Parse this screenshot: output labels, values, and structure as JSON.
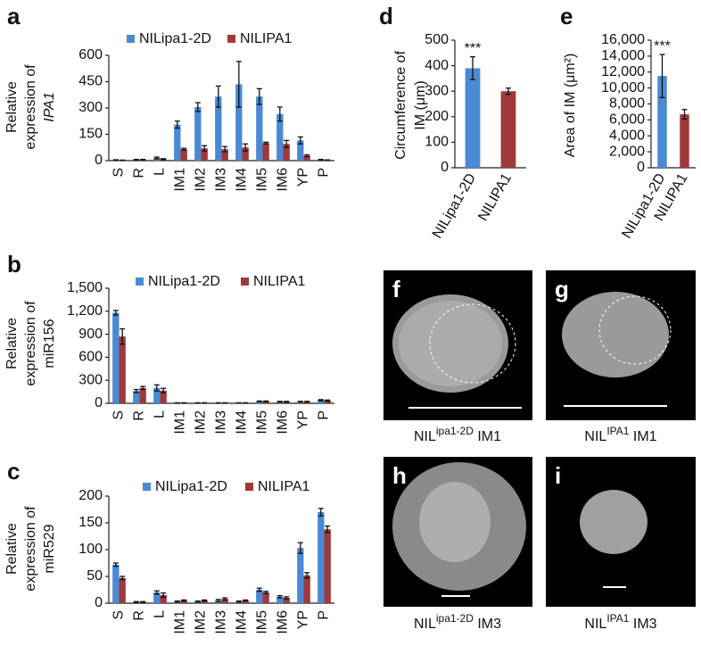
{
  "chart_data": [
    {
      "type": "bar",
      "panel": "a",
      "ylabel": [
        "Relative",
        "expression of",
        "IPA1"
      ],
      "categories": [
        "S",
        "R",
        "L",
        "IM1",
        "IM2",
        "IM3",
        "IM4",
        "IM5",
        "IM6",
        "YP",
        "P"
      ],
      "series": [
        {
          "name": "NILipa1-2D",
          "color": "#4a8ad4",
          "values": [
            3,
            5,
            15,
            205,
            305,
            365,
            435,
            365,
            265,
            115,
            5
          ],
          "errors": [
            2,
            2,
            5,
            20,
            25,
            60,
            130,
            45,
            40,
            20,
            2
          ]
        },
        {
          "name": "NILIPA1",
          "color": "#a03a3a",
          "values": [
            2,
            5,
            8,
            65,
            70,
            65,
            75,
            100,
            95,
            28,
            3
          ],
          "errors": [
            1,
            2,
            3,
            5,
            15,
            15,
            20,
            5,
            20,
            5,
            1
          ]
        }
      ],
      "ylim": [
        0,
        600
      ],
      "yticks": [
        0,
        150,
        300,
        450,
        600
      ]
    },
    {
      "type": "bar",
      "panel": "b",
      "ylabel": [
        "Relative",
        "expression of",
        "miR156"
      ],
      "categories": [
        "S",
        "R",
        "L",
        "IM1",
        "IM2",
        "IM3",
        "IM4",
        "IM5",
        "IM6",
        "YP",
        "P"
      ],
      "series": [
        {
          "name": "NILipa1-2D",
          "color": "#4a8ad4",
          "values": [
            1180,
            160,
            200,
            5,
            5,
            5,
            5,
            25,
            20,
            20,
            40
          ],
          "errors": [
            30,
            20,
            40,
            2,
            2,
            2,
            2,
            5,
            5,
            5,
            8
          ]
        },
        {
          "name": "NILIPA1",
          "color": "#a03a3a",
          "values": [
            870,
            200,
            165,
            5,
            5,
            5,
            5,
            25,
            20,
            20,
            35
          ],
          "errors": [
            100,
            20,
            30,
            2,
            2,
            2,
            2,
            5,
            5,
            5,
            8
          ]
        }
      ],
      "ylim": [
        0,
        1500
      ],
      "yticks": [
        0,
        300,
        600,
        900,
        {
          "value": 1200,
          "label": "1,200"
        },
        {
          "value": 1500,
          "label": "1,500"
        }
      ]
    },
    {
      "type": "bar",
      "panel": "c",
      "ylabel": [
        "Relative",
        "expression of",
        "miR529"
      ],
      "categories": [
        "S",
        "R",
        "L",
        "IM1",
        "IM2",
        "IM3",
        "IM4",
        "IM5",
        "IM6",
        "YP",
        "P"
      ],
      "series": [
        {
          "name": "NILipa1-2D",
          "color": "#4a8ad4",
          "values": [
            72,
            2,
            20,
            3,
            3,
            5,
            3,
            25,
            12,
            103,
            170
          ],
          "errors": [
            3,
            1,
            3,
            1,
            1,
            2,
            1,
            3,
            2,
            10,
            7
          ]
        },
        {
          "name": "NILIPA1",
          "color": "#a03a3a",
          "values": [
            47,
            2,
            15,
            5,
            5,
            8,
            5,
            20,
            10,
            52,
            138
          ],
          "errors": [
            3,
            1,
            4,
            1,
            1,
            2,
            1,
            2,
            2,
            5,
            6
          ]
        }
      ],
      "ylim": [
        0,
        200
      ],
      "yticks": [
        0,
        50,
        100,
        150,
        200
      ]
    },
    {
      "type": "bar",
      "panel": "d",
      "ylabel": [
        "Circumference of",
        "IM (μm)"
      ],
      "categories": [
        "NILipa1-2D",
        "NILIPA1"
      ],
      "values": [
        390,
        300
      ],
      "errors": [
        45,
        12
      ],
      "colors": [
        "#4a8ad4",
        "#a03a3a"
      ],
      "annotation": "***",
      "ylim": [
        0,
        500
      ],
      "yticks": [
        0,
        100,
        200,
        300,
        400,
        500
      ]
    },
    {
      "type": "bar",
      "panel": "e",
      "ylabel": [
        "Area of IM (μm²)"
      ],
      "categories": [
        "NILipa1-2D",
        "NILIPA1"
      ],
      "values": [
        11500,
        6700
      ],
      "errors": [
        2700,
        600
      ],
      "colors": [
        "#4a8ad4",
        "#a03a3a"
      ],
      "annotation": "***",
      "ylim": [
        0,
        16000
      ],
      "yticks": [
        0,
        {
          "value": 2000,
          "label": "2,000"
        },
        {
          "value": 4000,
          "label": "4,000"
        },
        {
          "value": 6000,
          "label": "6,000"
        },
        {
          "value": 8000,
          "label": "8,000"
        },
        {
          "value": 10000,
          "label": "10,000"
        },
        {
          "value": 12000,
          "label": "12,000"
        },
        {
          "value": 14000,
          "label": "14,000"
        },
        {
          "value": 16000,
          "label": "16,000"
        }
      ]
    }
  ],
  "images": [
    {
      "panel": "f",
      "caption": {
        "label": "NIL",
        "sup": "ipa1-2D",
        "stage": "IM1"
      }
    },
    {
      "panel": "g",
      "caption": {
        "label": "NIL",
        "sup": "IPA1",
        "stage": "IM1"
      }
    },
    {
      "panel": "h",
      "caption": {
        "label": "NIL",
        "sup": "ipa1-2D",
        "stage": "IM3"
      }
    },
    {
      "panel": "i",
      "caption": {
        "label": "NIL",
        "sup": "IPA1",
        "stage": "IM3"
      }
    }
  ]
}
